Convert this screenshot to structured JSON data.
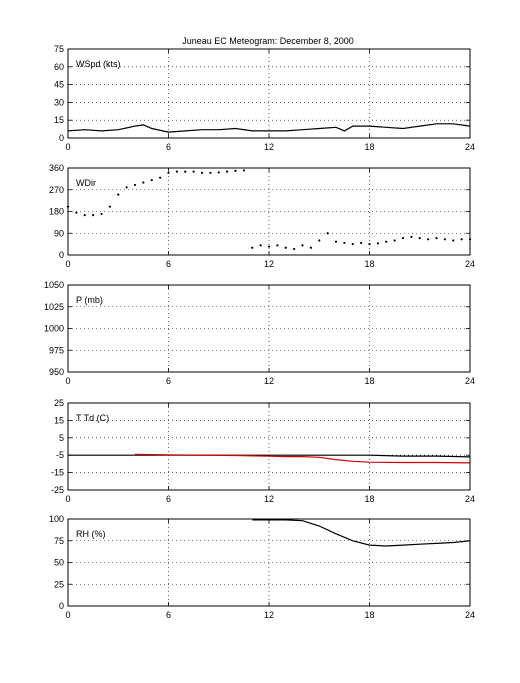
{
  "figure": {
    "title": "Juneau EC Meteogram:  December  8, 2000"
  },
  "chart_data": [
    {
      "type": "line",
      "label": "WSpd (kts)",
      "xlim": [
        0,
        24
      ],
      "ylim": [
        0,
        75
      ],
      "xticks": [
        0,
        6,
        12,
        18,
        24
      ],
      "yticks": [
        0,
        15,
        30,
        45,
        60,
        75
      ],
      "grid": true,
      "series": [
        {
          "color": "#000000",
          "x": [
            0,
            1,
            2,
            3,
            4,
            4.5,
            5,
            6,
            7,
            8,
            9,
            10,
            11,
            12,
            13,
            14,
            15,
            16,
            16.5,
            17,
            18,
            19,
            20,
            21,
            22,
            23,
            24
          ],
          "y": [
            6,
            7,
            6,
            7,
            10,
            11,
            8,
            5,
            6,
            7,
            7,
            8,
            6,
            6,
            6,
            7,
            8,
            9,
            6,
            10,
            10,
            9,
            8,
            10,
            12,
            12,
            10
          ]
        }
      ]
    },
    {
      "type": "scatter",
      "label": "WDir",
      "xlim": [
        0,
        24
      ],
      "ylim": [
        0,
        360
      ],
      "xticks": [
        0,
        6,
        12,
        18,
        24
      ],
      "yticks": [
        0,
        90,
        180,
        270,
        360
      ],
      "grid": true,
      "series": [
        {
          "color": "#000000",
          "x": [
            0,
            0.5,
            1,
            1.5,
            2,
            2.5,
            3,
            3.5,
            4,
            4.5,
            5,
            5.5,
            6,
            6.5,
            7,
            7.5,
            8,
            8.5,
            9,
            9.5,
            10,
            10.5,
            11,
            11.5,
            12,
            12.5,
            13,
            13.5,
            14,
            14.5,
            15,
            15.5,
            16,
            16.5,
            17,
            17.5,
            18,
            18.5,
            19,
            19.5,
            20,
            20.5,
            21,
            21.5,
            22,
            22.5,
            23,
            23.5,
            24
          ],
          "y": [
            200,
            175,
            165,
            165,
            170,
            200,
            250,
            280,
            290,
            300,
            310,
            320,
            340,
            345,
            345,
            345,
            340,
            340,
            342,
            345,
            348,
            350,
            30,
            40,
            35,
            40,
            30,
            25,
            40,
            30,
            60,
            90,
            55,
            50,
            45,
            50,
            45,
            48,
            55,
            60,
            70,
            75,
            70,
            65,
            70,
            65,
            60,
            65,
            65
          ]
        }
      ]
    },
    {
      "type": "line",
      "label": "P (mb)",
      "xlim": [
        0,
        24
      ],
      "ylim": [
        950,
        1050
      ],
      "xticks": [
        0,
        6,
        12,
        18,
        24
      ],
      "yticks": [
        950,
        975,
        1000,
        1025,
        1050
      ],
      "grid": true,
      "series": []
    },
    {
      "type": "line",
      "label": "T Td (C)",
      "xlim": [
        0,
        24
      ],
      "ylim": [
        -25,
        25
      ],
      "xticks": [
        0,
        6,
        12,
        18,
        24
      ],
      "yticks": [
        -25,
        -15,
        -5,
        5,
        15,
        25
      ],
      "grid": true,
      "series": [
        {
          "color": "#000000",
          "x": [
            0,
            2,
            4,
            6,
            8,
            10,
            12,
            14,
            16,
            18,
            20,
            22,
            24
          ],
          "y": [
            -5,
            -5,
            -5,
            -5,
            -5,
            -5,
            -5,
            -5,
            -5,
            -5,
            -5.5,
            -5.5,
            -6
          ]
        },
        {
          "color": "#d00000",
          "x": [
            4,
            6,
            8,
            10,
            12,
            13,
            14,
            15,
            16,
            17,
            18,
            20,
            22,
            24
          ],
          "y": [
            -4.5,
            -4.8,
            -5,
            -5.2,
            -5.6,
            -5.8,
            -5.8,
            -6.2,
            -7.5,
            -8.5,
            -9,
            -9.2,
            -9.2,
            -9.4
          ]
        }
      ]
    },
    {
      "type": "line",
      "label": "RH (%)",
      "xlim": [
        0,
        24
      ],
      "ylim": [
        0,
        100
      ],
      "xticks": [
        0,
        6,
        12,
        18,
        24
      ],
      "yticks": [
        0,
        25,
        50,
        75,
        100
      ],
      "grid": true,
      "series": [
        {
          "color": "#000000",
          "x": [
            11,
            12,
            13,
            14,
            15,
            16,
            17,
            18,
            19,
            20,
            21,
            22,
            23,
            24
          ],
          "y": [
            99,
            99,
            99,
            98,
            92,
            83,
            75,
            70,
            69,
            70,
            71,
            72,
            73,
            75
          ]
        }
      ]
    }
  ]
}
